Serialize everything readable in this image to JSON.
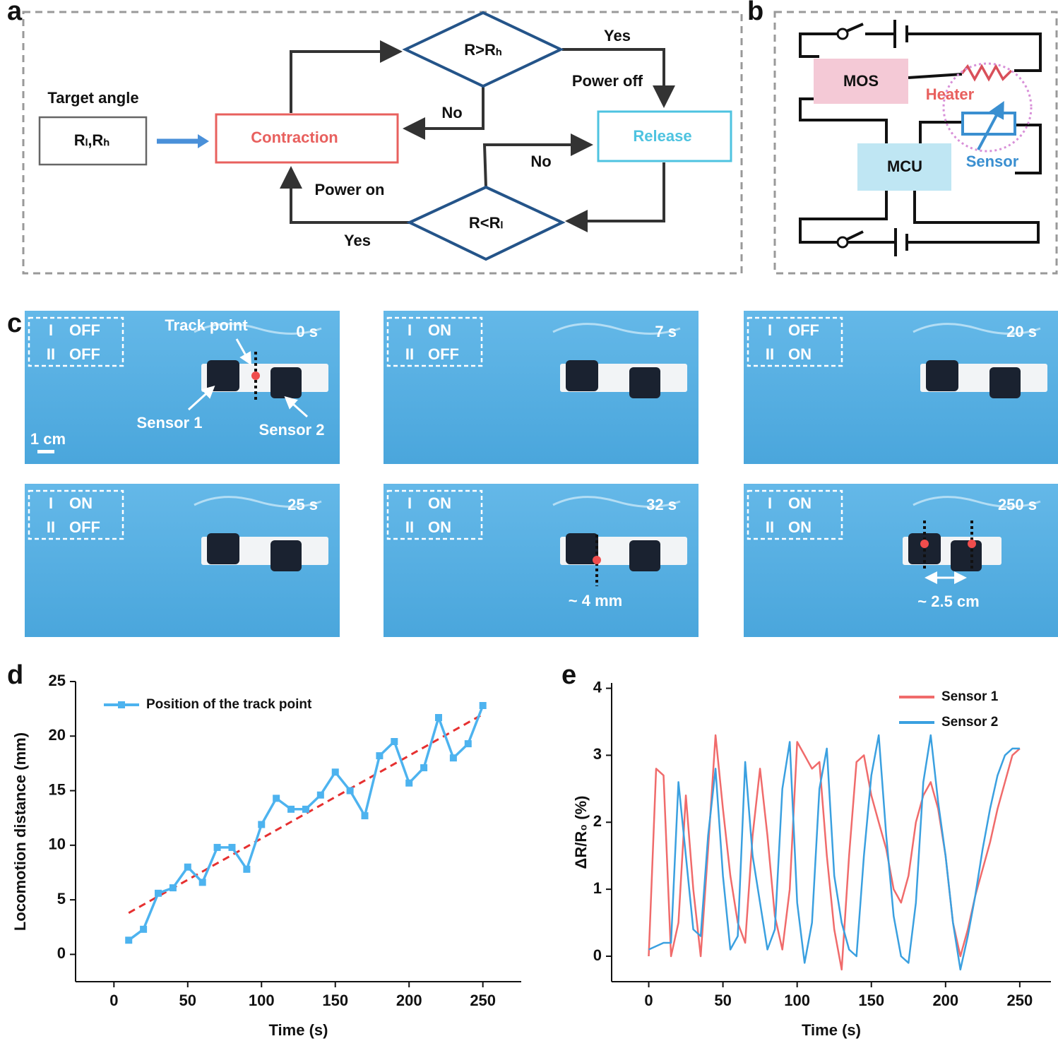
{
  "panel_labels": [
    "a",
    "b",
    "c",
    "d",
    "e"
  ],
  "flowchart": {
    "input_label": "Target angle",
    "input": "Rₗ,Rₕ",
    "contraction": "Contraction",
    "release": "Release",
    "decision_high": "R>Rₕ",
    "decision_low": "R<Rₗ",
    "edges": {
      "high_yes": "Yes",
      "power_off": "Power off",
      "high_no": "No",
      "low_no": "No",
      "power_on": "Power on",
      "low_yes": "Yes"
    }
  },
  "circuit": {
    "mos": "MOS",
    "mcu": "MCU",
    "heater": "Heater",
    "sensor": "Sensor"
  },
  "photos": [
    {
      "states": [
        {
          "channel": "I",
          "state": "OFF"
        },
        {
          "channel": "II",
          "state": "OFF"
        }
      ],
      "time": "0 s",
      "annotations": [
        "Track point",
        "Sensor 1",
        "Sensor 2",
        "1 cm"
      ]
    },
    {
      "states": [
        {
          "channel": "I",
          "state": "ON"
        },
        {
          "channel": "II",
          "state": "OFF"
        }
      ],
      "time": "7 s",
      "annotations": []
    },
    {
      "states": [
        {
          "channel": "I",
          "state": "OFF"
        },
        {
          "channel": "II",
          "state": "ON"
        }
      ],
      "time": "20 s",
      "annotations": []
    },
    {
      "states": [
        {
          "channel": "I",
          "state": "ON"
        },
        {
          "channel": "II",
          "state": "OFF"
        }
      ],
      "time": "25  s",
      "annotations": []
    },
    {
      "states": [
        {
          "channel": "I",
          "state": "ON"
        },
        {
          "channel": "II",
          "state": "ON"
        }
      ],
      "time": "32 s",
      "annotations": [
        "~ 4 mm"
      ]
    },
    {
      "states": [
        {
          "channel": "I",
          "state": "ON"
        },
        {
          "channel": "II",
          "state": "ON"
        }
      ],
      "time": "250 s",
      "annotations": [
        "~ 2.5 cm"
      ]
    }
  ],
  "chart_data": [
    {
      "type": "line",
      "xlabel": "Time (s)",
      "ylabel": "Locomotion distance (mm)",
      "x": [
        10,
        20,
        30,
        40,
        50,
        60,
        70,
        80,
        90,
        100,
        110,
        120,
        130,
        140,
        150,
        160,
        170,
        180,
        190,
        200,
        210,
        220,
        230,
        240,
        250
      ],
      "series": [
        {
          "name": "Position of the track point",
          "color": "#4db3ef",
          "marker": "square",
          "values": [
            1.3,
            2.3,
            5.6,
            6.1,
            8.0,
            6.6,
            9.8,
            9.8,
            7.8,
            11.9,
            14.3,
            13.3,
            13.3,
            14.6,
            16.7,
            15.0,
            12.7,
            18.2,
            19.5,
            15.7,
            17.1,
            21.7,
            18.0,
            19.3,
            22.8
          ]
        }
      ],
      "trend": {
        "x": [
          10,
          250
        ],
        "values": [
          3.8,
          22.0
        ],
        "color": "#e63030"
      },
      "xlim": [
        -26,
        276
      ],
      "ylim": [
        -2.5,
        25
      ],
      "xticks": [
        0,
        50,
        100,
        150,
        200,
        250
      ],
      "yticks": [
        0,
        5,
        10,
        15,
        20,
        25
      ],
      "legend": "upper left"
    },
    {
      "type": "line",
      "xlabel": "Time (s)",
      "ylabel": "ΔR/R₀ (%)",
      "x": [
        0,
        5,
        10,
        15,
        20,
        25,
        30,
        35,
        40,
        45,
        50,
        55,
        60,
        65,
        70,
        75,
        80,
        85,
        90,
        95,
        100,
        105,
        110,
        115,
        120,
        125,
        130,
        135,
        140,
        145,
        150,
        155,
        160,
        165,
        170,
        175,
        180,
        185,
        190,
        195,
        200,
        205,
        210,
        215,
        220,
        225,
        230,
        235,
        240,
        245,
        250
      ],
      "series": [
        {
          "name": "Sensor 1",
          "color": "#f06b6b",
          "marker": "none",
          "values": [
            0.0,
            2.8,
            2.7,
            0.0,
            0.5,
            2.4,
            1.0,
            0.0,
            1.6,
            3.3,
            2.2,
            1.2,
            0.5,
            0.2,
            1.8,
            2.8,
            1.8,
            0.6,
            0.1,
            1.0,
            3.2,
            3.0,
            2.8,
            2.9,
            1.5,
            0.4,
            -0.2,
            1.5,
            2.9,
            3.0,
            2.4,
            2.0,
            1.6,
            1.0,
            0.8,
            1.2,
            2.0,
            2.4,
            2.6,
            2.2,
            1.5,
            0.5,
            0.0,
            0.4,
            0.9,
            1.3,
            1.7,
            2.2,
            2.6,
            3.0,
            3.1
          ]
        },
        {
          "name": "Sensor 2",
          "color": "#3aa0e0",
          "marker": "none",
          "values": [
            0.1,
            0.15,
            0.2,
            0.2,
            2.6,
            1.5,
            0.4,
            0.3,
            1.8,
            2.8,
            1.2,
            0.1,
            0.3,
            2.9,
            1.5,
            0.8,
            0.1,
            0.4,
            2.5,
            3.2,
            0.8,
            -0.1,
            0.5,
            2.5,
            3.1,
            1.2,
            0.5,
            0.1,
            0.0,
            1.5,
            2.7,
            3.3,
            1.8,
            0.6,
            0.0,
            -0.1,
            0.8,
            2.6,
            3.3,
            2.3,
            1.5,
            0.5,
            -0.2,
            0.3,
            0.9,
            1.6,
            2.2,
            2.7,
            3.0,
            3.1,
            3.1
          ]
        }
      ],
      "xlim": [
        -25,
        271
      ],
      "ylim": [
        -0.38,
        4.08
      ],
      "xticks": [
        0,
        50,
        100,
        150,
        200,
        250
      ],
      "yticks": [
        0,
        1,
        2,
        3,
        4
      ],
      "legend": "upper right"
    }
  ]
}
